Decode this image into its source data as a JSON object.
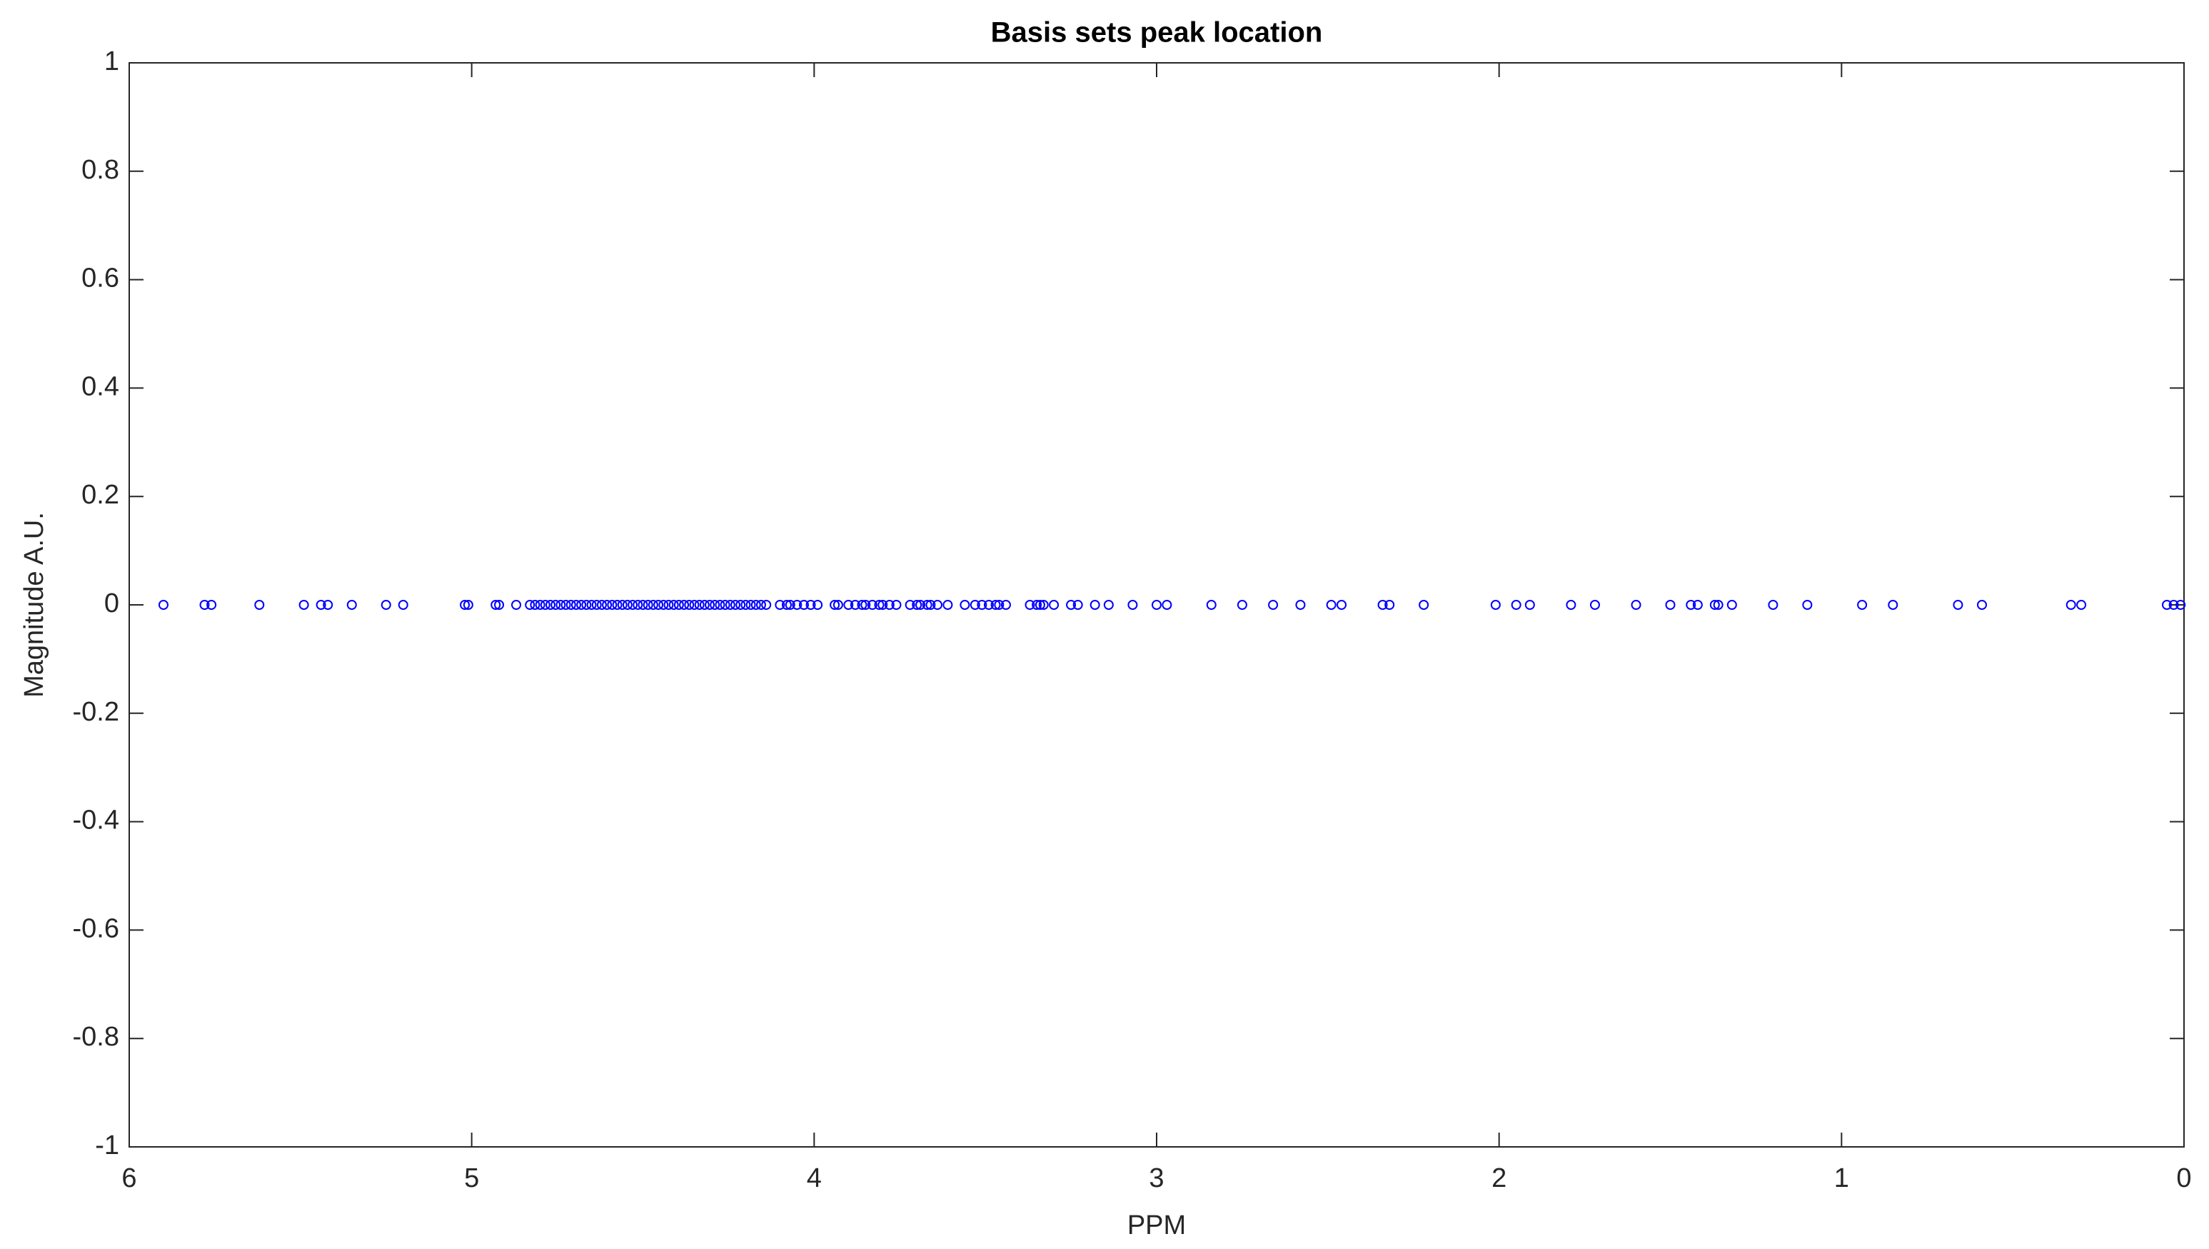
{
  "chart_data": {
    "type": "scatter",
    "title": "Basis sets peak location",
    "xlabel": "PPM",
    "ylabel": "Magnitude A.U.",
    "x": [
      5.9,
      5.78,
      5.76,
      5.62,
      5.49,
      5.44,
      5.42,
      5.35,
      5.25,
      5.2,
      5.02,
      5.01,
      4.93,
      4.92,
      4.87,
      4.83,
      4.815,
      4.8,
      4.785,
      4.77,
      4.755,
      4.74,
      4.725,
      4.71,
      4.695,
      4.68,
      4.665,
      4.65,
      4.635,
      4.62,
      4.605,
      4.59,
      4.575,
      4.56,
      4.545,
      4.53,
      4.515,
      4.5,
      4.485,
      4.47,
      4.455,
      4.44,
      4.425,
      4.41,
      4.395,
      4.38,
      4.365,
      4.35,
      4.335,
      4.32,
      4.305,
      4.29,
      4.275,
      4.26,
      4.245,
      4.23,
      4.215,
      4.2,
      4.185,
      4.17,
      4.155,
      4.14,
      4.1,
      4.08,
      4.07,
      4.05,
      4.03,
      4.01,
      3.99,
      3.94,
      3.93,
      3.9,
      3.88,
      3.86,
      3.85,
      3.83,
      3.81,
      3.8,
      3.78,
      3.76,
      3.72,
      3.7,
      3.69,
      3.67,
      3.66,
      3.64,
      3.61,
      3.56,
      3.53,
      3.51,
      3.49,
      3.47,
      3.46,
      3.44,
      3.37,
      3.35,
      3.34,
      3.33,
      3.3,
      3.25,
      3.23,
      3.18,
      3.14,
      3.07,
      3.0,
      2.97,
      2.84,
      2.75,
      2.66,
      2.58,
      2.49,
      2.46,
      2.34,
      2.32,
      2.22,
      2.01,
      1.95,
      1.91,
      1.79,
      1.72,
      1.6,
      1.5,
      1.44,
      1.42,
      1.37,
      1.36,
      1.32,
      1.2,
      1.1,
      0.94,
      0.85,
      0.66,
      0.59,
      0.33,
      0.3,
      0.05,
      0.03,
      0.01
    ],
    "y": [
      0,
      0,
      0,
      0,
      0,
      0,
      0,
      0,
      0,
      0,
      0,
      0,
      0,
      0,
      0,
      0,
      0,
      0,
      0,
      0,
      0,
      0,
      0,
      0,
      0,
      0,
      0,
      0,
      0,
      0,
      0,
      0,
      0,
      0,
      0,
      0,
      0,
      0,
      0,
      0,
      0,
      0,
      0,
      0,
      0,
      0,
      0,
      0,
      0,
      0,
      0,
      0,
      0,
      0,
      0,
      0,
      0,
      0,
      0,
      0,
      0,
      0,
      0,
      0,
      0,
      0,
      0,
      0,
      0,
      0,
      0,
      0,
      0,
      0,
      0,
      0,
      0,
      0,
      0,
      0,
      0,
      0,
      0,
      0,
      0,
      0,
      0,
      0,
      0,
      0,
      0,
      0,
      0,
      0,
      0,
      0,
      0,
      0,
      0,
      0,
      0,
      0,
      0,
      0,
      0,
      0,
      0,
      0,
      0,
      0,
      0,
      0,
      0,
      0,
      0,
      0,
      0,
      0,
      0,
      0,
      0,
      0,
      0,
      0,
      0,
      0,
      0,
      0,
      0,
      0,
      0,
      0,
      0,
      0,
      0,
      0,
      0,
      0
    ],
    "color": "#0000ff",
    "xlim": [
      6,
      0
    ],
    "xticks": [
      6,
      5,
      4,
      3,
      2,
      1,
      0
    ],
    "ylim": [
      -1,
      1
    ],
    "yticks": [
      -1,
      -0.8,
      -0.6,
      -0.4,
      -0.2,
      0,
      0.2,
      0.4,
      0.6,
      0.8,
      1
    ],
    "grid": false
  }
}
